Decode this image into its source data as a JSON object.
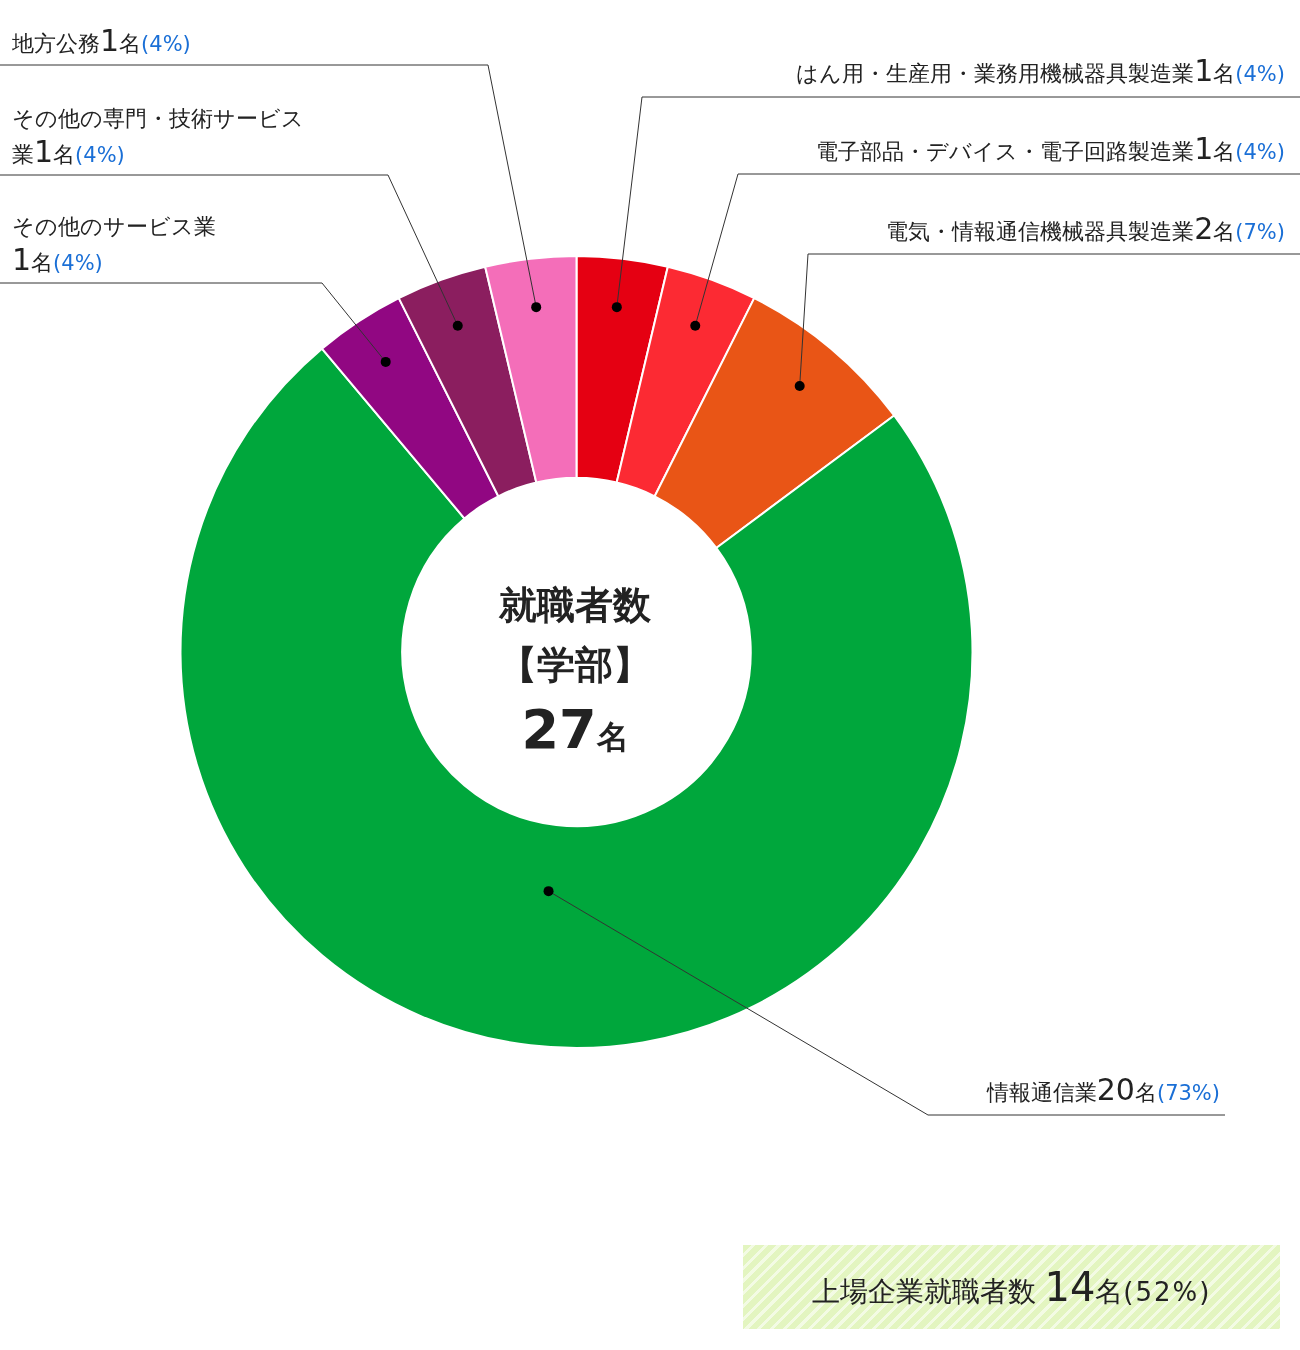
{
  "chart_data": {
    "type": "donut",
    "categories": [
      "はん用・生産用・業務用機械器具製造業",
      "電子部品・デバイス・電子回路製造業",
      "電気・情報通信機械器具製造業",
      "情報通信業",
      "その他のサービス業",
      "その他の専門・技術サービス業",
      "地方公務"
    ],
    "values": [
      1,
      1,
      2,
      20,
      1,
      1,
      1
    ],
    "colors": [
      "#e50012",
      "#fc2a33",
      "#e95516",
      "#00a73c",
      "#910782",
      "#8b1e5f",
      "#f46eb9"
    ],
    "value_labels": [
      "1名(4%)",
      "1名(4%)",
      "2名(7%)",
      "20名(73%)",
      "1名(4%)",
      "1名(4%)",
      "1名(4%)"
    ],
    "annotations": [
      "就職者数",
      "【学部】",
      "27名",
      "上場企業就職者数 14名(52%)"
    ],
    "legend": false
  }
}
